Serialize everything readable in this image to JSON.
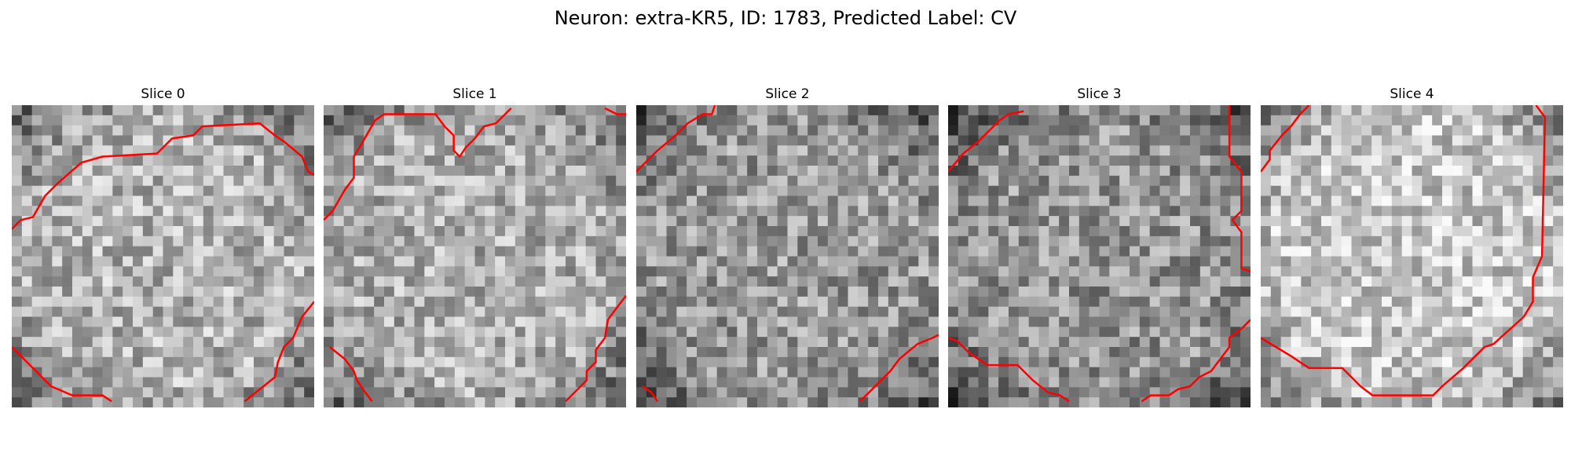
{
  "figure": {
    "title": "Neuron: extra-KR5, ID: 1783, Predicted Label: CV"
  },
  "colors": {
    "contour": "#ff0000",
    "background": "#ffffff"
  },
  "panels": [
    {
      "title": "Slice 0",
      "image": {
        "alt": "",
        "grid": 30,
        "mean": 0.7,
        "contours": [
          [
            [
              0.0,
              0.41
            ],
            [
              0.03,
              0.38
            ],
            [
              0.07,
              0.37
            ],
            [
              0.11,
              0.3
            ],
            [
              0.15,
              0.26
            ],
            [
              0.23,
              0.19
            ],
            [
              0.3,
              0.17
            ],
            [
              0.48,
              0.16
            ],
            [
              0.53,
              0.11
            ],
            [
              0.6,
              0.1
            ],
            [
              0.63,
              0.07
            ],
            [
              0.82,
              0.06
            ],
            [
              0.87,
              0.1
            ],
            [
              0.9,
              0.12
            ],
            [
              0.96,
              0.17
            ],
            [
              0.98,
              0.22
            ],
            [
              1.0,
              0.23
            ]
          ],
          [
            [
              0.0,
              0.8
            ],
            [
              0.04,
              0.84
            ],
            [
              0.13,
              0.93
            ],
            [
              0.2,
              0.96
            ],
            [
              0.3,
              0.96
            ],
            [
              0.33,
              0.98
            ]
          ],
          [
            [
              0.77,
              0.98
            ],
            [
              0.87,
              0.9
            ],
            [
              0.88,
              0.85
            ],
            [
              0.9,
              0.8
            ],
            [
              0.93,
              0.77
            ],
            [
              0.96,
              0.7
            ],
            [
              1.0,
              0.65
            ]
          ]
        ]
      }
    },
    {
      "title": "Slice 1",
      "image": {
        "alt": "",
        "grid": 30,
        "mean": 0.68,
        "contours": [
          [
            [
              0.0,
              0.38
            ],
            [
              0.03,
              0.35
            ],
            [
              0.07,
              0.28
            ],
            [
              0.1,
              0.24
            ],
            [
              0.1,
              0.17
            ],
            [
              0.13,
              0.12
            ],
            [
              0.17,
              0.05
            ],
            [
              0.2,
              0.03
            ],
            [
              0.37,
              0.03
            ],
            [
              0.4,
              0.07
            ],
            [
              0.43,
              0.1
            ],
            [
              0.43,
              0.15
            ],
            [
              0.45,
              0.17
            ],
            [
              0.47,
              0.14
            ],
            [
              0.5,
              0.11
            ],
            [
              0.53,
              0.07
            ],
            [
              0.57,
              0.06
            ],
            [
              0.6,
              0.03
            ],
            [
              0.62,
              0.01
            ]
          ],
          [
            [
              0.93,
              0.01
            ],
            [
              0.97,
              0.03
            ],
            [
              1.0,
              0.03
            ]
          ],
          [
            [
              0.02,
              0.8
            ],
            [
              0.07,
              0.84
            ],
            [
              0.1,
              0.88
            ],
            [
              0.11,
              0.91
            ],
            [
              0.13,
              0.94
            ],
            [
              0.16,
              0.98
            ]
          ],
          [
            [
              0.8,
              0.98
            ],
            [
              0.87,
              0.91
            ],
            [
              0.87,
              0.88
            ],
            [
              0.9,
              0.85
            ],
            [
              0.9,
              0.81
            ],
            [
              0.93,
              0.77
            ],
            [
              0.94,
              0.71
            ],
            [
              0.97,
              0.67
            ],
            [
              1.0,
              0.63
            ]
          ]
        ]
      }
    },
    {
      "title": "Slice 2",
      "image": {
        "alt": "",
        "grid": 30,
        "mean": 0.6,
        "contours": [
          [
            [
              0.0,
              0.22
            ],
            [
              0.07,
              0.15
            ],
            [
              0.13,
              0.1
            ],
            [
              0.17,
              0.06
            ],
            [
              0.22,
              0.03
            ],
            [
              0.25,
              0.03
            ],
            [
              0.26,
              0.0
            ]
          ],
          [
            [
              0.02,
              0.93
            ],
            [
              0.05,
              0.95
            ],
            [
              0.07,
              0.98
            ]
          ],
          [
            [
              0.74,
              0.98
            ],
            [
              0.8,
              0.92
            ],
            [
              0.84,
              0.88
            ],
            [
              0.87,
              0.84
            ],
            [
              0.93,
              0.79
            ],
            [
              0.98,
              0.77
            ],
            [
              1.0,
              0.76
            ]
          ]
        ]
      }
    },
    {
      "title": "Slice 3",
      "image": {
        "alt": "",
        "grid": 30,
        "mean": 0.58,
        "contours": [
          [
            [
              0.0,
              0.22
            ],
            [
              0.05,
              0.16
            ],
            [
              0.1,
              0.12
            ],
            [
              0.17,
              0.05
            ],
            [
              0.2,
              0.03
            ],
            [
              0.25,
              0.02
            ]
          ],
          [
            [
              0.93,
              0.0
            ],
            [
              0.93,
              0.17
            ],
            [
              0.97,
              0.22
            ],
            [
              0.97,
              0.35
            ],
            [
              0.94,
              0.38
            ],
            [
              0.97,
              0.42
            ],
            [
              0.97,
              0.54
            ],
            [
              1.0,
              0.55
            ]
          ],
          [
            [
              0.0,
              0.77
            ],
            [
              0.03,
              0.78
            ],
            [
              0.07,
              0.82
            ],
            [
              0.13,
              0.86
            ],
            [
              0.23,
              0.86
            ],
            [
              0.28,
              0.91
            ],
            [
              0.33,
              0.95
            ],
            [
              0.37,
              0.96
            ],
            [
              0.4,
              0.98
            ]
          ],
          [
            [
              0.64,
              0.98
            ],
            [
              0.67,
              0.96
            ],
            [
              0.73,
              0.96
            ],
            [
              0.76,
              0.94
            ],
            [
              0.8,
              0.93
            ],
            [
              0.83,
              0.9
            ],
            [
              0.87,
              0.88
            ],
            [
              0.9,
              0.84
            ],
            [
              0.93,
              0.8
            ],
            [
              0.93,
              0.77
            ],
            [
              0.97,
              0.74
            ],
            [
              1.0,
              0.71
            ]
          ]
        ]
      }
    },
    {
      "title": "Slice 4",
      "image": {
        "alt": "",
        "grid": 30,
        "mean": 0.78,
        "contours": [
          [
            [
              0.0,
              0.22
            ],
            [
              0.03,
              0.18
            ],
            [
              0.03,
              0.15
            ],
            [
              0.07,
              0.1
            ],
            [
              0.1,
              0.07
            ],
            [
              0.13,
              0.03
            ],
            [
              0.16,
              0.0
            ]
          ],
          [
            [
              0.91,
              0.0
            ],
            [
              0.94,
              0.04
            ],
            [
              0.93,
              0.5
            ],
            [
              0.9,
              0.57
            ],
            [
              0.9,
              0.65
            ],
            [
              0.87,
              0.7
            ],
            [
              0.77,
              0.79
            ],
            [
              0.74,
              0.8
            ],
            [
              0.67,
              0.87
            ],
            [
              0.6,
              0.93
            ],
            [
              0.57,
              0.96
            ],
            [
              0.37,
              0.96
            ],
            [
              0.33,
              0.93
            ],
            [
              0.27,
              0.87
            ],
            [
              0.16,
              0.87
            ],
            [
              0.1,
              0.83
            ],
            [
              0.05,
              0.8
            ],
            [
              0.0,
              0.77
            ]
          ]
        ]
      }
    }
  ]
}
